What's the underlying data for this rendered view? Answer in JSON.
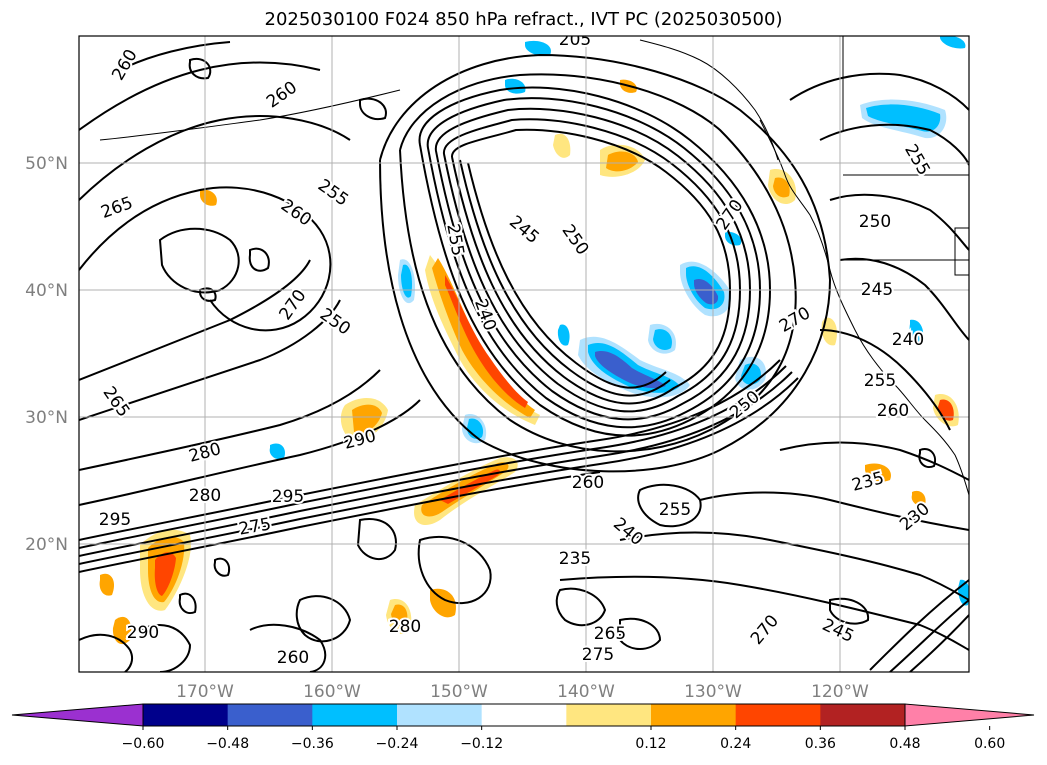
{
  "title": "2025030100 F024 850 hPa refract., IVT PC (2025030500)",
  "lat_labels": [
    "50°N",
    "40°N",
    "30°N",
    "20°N"
  ],
  "lon_labels": [
    "170°W",
    "160°W",
    "150°W",
    "140°W",
    "130°W",
    "120°W"
  ],
  "contour_labels": [
    {
      "text": "260",
      "rot": -35
    },
    {
      "text": "265",
      "rot": -20
    },
    {
      "text": "260",
      "rot": -60
    },
    {
      "text": "255",
      "rot": 35
    },
    {
      "text": "260",
      "rot": 35
    },
    {
      "text": "250",
      "rot": 35
    },
    {
      "text": "270",
      "rot": -55
    },
    {
      "text": "265",
      "rot": 55
    },
    {
      "text": "255",
      "rot": 80
    },
    {
      "text": "245",
      "rot": 40
    },
    {
      "text": "250",
      "rot": 55
    },
    {
      "text": "240",
      "rot": 70
    },
    {
      "text": "270",
      "rot": -55
    },
    {
      "text": "270",
      "rot": -30
    },
    {
      "text": "250",
      "rot": -40
    },
    {
      "text": "290",
      "rot": -15
    },
    {
      "text": "280",
      "rot": -15
    },
    {
      "text": "280",
      "rot": 0
    },
    {
      "text": "295",
      "rot": 0
    },
    {
      "text": "275",
      "rot": -10
    },
    {
      "text": "295",
      "rot": 0
    },
    {
      "text": "260",
      "rot": 0
    },
    {
      "text": "255",
      "rot": 0
    },
    {
      "text": "240",
      "rot": 40
    },
    {
      "text": "235",
      "rot": 0
    },
    {
      "text": "265",
      "rot": 0
    },
    {
      "text": "275",
      "rot": 0
    },
    {
      "text": "290",
      "rot": 0
    },
    {
      "text": "280",
      "rot": 0
    },
    {
      "text": "260",
      "rot": 0
    },
    {
      "text": "245",
      "rot": 0
    },
    {
      "text": "240",
      "rot": 0
    },
    {
      "text": "255",
      "rot": 0
    },
    {
      "text": "260",
      "rot": 0
    },
    {
      "text": "235",
      "rot": -15
    },
    {
      "text": "230",
      "rot": -40
    },
    {
      "text": "245",
      "rot": 25
    },
    {
      "text": "250",
      "rot": 0
    },
    {
      "text": "255",
      "rot": 60
    },
    {
      "text": "205",
      "rot": 0
    },
    {
      "text": "270",
      "rot": -50
    }
  ],
  "colorbar": {
    "ticks": [
      "−0.60",
      "−0.48",
      "−0.36",
      "−0.24",
      "−0.12",
      "0.12",
      "0.24",
      "0.36",
      "0.48",
      "0.60"
    ],
    "colors": [
      "#9b30d0",
      "#00008b",
      "#3a5fcd",
      "#00bfff",
      "#b0e2ff",
      "#ffffff",
      "#ffe680",
      "#ffa500",
      "#ff4500",
      "#b22222",
      "#ff80a8"
    ]
  },
  "shading_colors": {
    "light_blue": "#b0e2ff",
    "blue": "#00bfff",
    "mid_blue": "#3a5fcd",
    "yellow": "#ffe680",
    "orange": "#ffa500",
    "red_orange": "#ff4500"
  }
}
